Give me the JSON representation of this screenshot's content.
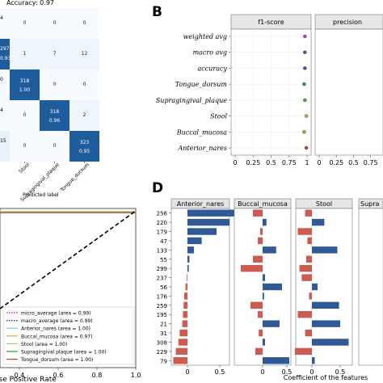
{
  "panel_labels": {
    "b": "B",
    "d": "D"
  },
  "panel_a": {
    "title": "Accuracy: 0.97",
    "xlabel": "Predicted label",
    "col_labels": [
      "Stool",
      "Supragingival_plaque",
      "Tongue_dorsum"
    ],
    "cells": [
      [
        [
          "0",
          ""
        ],
        [
          "0",
          ""
        ],
        [
          "0",
          ""
        ]
      ],
      [
        [
          "1",
          ""
        ],
        [
          "7",
          ""
        ],
        [
          "12",
          ""
        ]
      ],
      [
        [
          "318",
          "1.00"
        ],
        [
          "0",
          ""
        ],
        [
          "0",
          ""
        ]
      ],
      [
        [
          "0",
          ""
        ],
        [
          "318",
          "0.96"
        ],
        [
          "2",
          ""
        ]
      ],
      [
        [
          "0",
          ""
        ],
        [
          "0",
          ""
        ],
        [
          "323",
          "0.95"
        ]
      ]
    ],
    "left_partial": [
      "297",
      "0.93",
      "0",
      "4",
      "15"
    ],
    "partial_top_left": "4"
  },
  "chart_data": [
    {
      "type": "scatter",
      "panel": "B",
      "facet_titles": [
        "f1-score",
        "precision"
      ],
      "categories": [
        "weighted avg",
        "macro avg",
        "accuracy",
        "Tongue_dorsum",
        "Supragingival_plaque",
        "Stool",
        "Buccal_mucosa",
        "Anterior_nares"
      ],
      "values": [
        0.97,
        0.97,
        0.97,
        0.96,
        0.97,
        0.99,
        0.96,
        0.99
      ],
      "colors": [
        "#c042b8",
        "#7a3ea8",
        "#2e5ea8",
        "#2b8c8c",
        "#5aa94a",
        "#b7b23a",
        "#7fb93a",
        "#c94a3a"
      ],
      "xlim": [
        0,
        1
      ],
      "x_ticks": [
        "0",
        "0.25",
        "0.5",
        "0.75",
        "1"
      ],
      "x_ticks_right": [
        "0",
        "0.25",
        "0.5",
        "0.75"
      ]
    },
    {
      "type": "line",
      "panel": "C",
      "xlabel": "False Positive Rate",
      "x_ticks": [
        "0.4",
        "0.6",
        "0.8",
        "1.0"
      ],
      "series": [
        {
          "name": "micro_average (area = 0.99)",
          "color": "#e0407a",
          "style": "dotted"
        },
        {
          "name": "macro_average (area = 0.99)",
          "color": "#3a3aa0",
          "style": "dotted"
        },
        {
          "name": "Anterior_nares (area = 1.00)",
          "color": "#9bbbe0",
          "style": "solid"
        },
        {
          "name": "Buccal_mucosa (area = 0.97)",
          "color": "#f0a040",
          "style": "solid"
        },
        {
          "name": "Stool (area = 1.00)",
          "color": "#9ad07a",
          "style": "solid"
        },
        {
          "name": "Supragingival plaque (area = 1.00)",
          "color": "#2e9a2e",
          "style": "solid"
        },
        {
          "name": "Tongue_dorsum (area = 1.00)",
          "color": "#d43a3a",
          "style": "solid"
        }
      ]
    },
    {
      "type": "bar",
      "panel": "D",
      "xlabel": "Coefficient of the features",
      "categories": [
        "256",
        "220",
        "179",
        "47",
        "133",
        "55",
        "299",
        "237",
        "56",
        "176",
        "259",
        "195",
        "21",
        "31",
        "308",
        "229",
        "79"
      ],
      "facets": [
        {
          "name": "Anterior_nares",
          "x_ticks": [
            "0",
            "0.5"
          ],
          "values": [
            0.75,
            0.65,
            0.45,
            0.22,
            0.1,
            0.03,
            0.02,
            -0.01,
            -0.03,
            -0.05,
            -0.06,
            -0.07,
            -0.08,
            -0.12,
            -0.14,
            -0.18,
            -0.22
          ]
        },
        {
          "name": "Buccal_mucosa",
          "x_ticks": [
            "0",
            "0.5"
          ],
          "values": [
            -0.2,
            0.08,
            -0.05,
            -0.1,
            0.28,
            -0.2,
            -0.45,
            0.05,
            0.4,
            0.03,
            -0.25,
            -0.1,
            0.35,
            -0.08,
            0.05,
            -0.15,
            0.55
          ]
        },
        {
          "name": "Stool",
          "x_ticks": [
            "0",
            "0.5"
          ],
          "values": [
            -0.12,
            0.22,
            -0.25,
            -0.08,
            0.45,
            -0.1,
            -0.22,
            -0.18,
            0.1,
            -0.05,
            0.48,
            -0.25,
            0.5,
            -0.12,
            0.65,
            -0.3,
            0.05
          ]
        },
        {
          "name": "Supra",
          "x_ticks": [],
          "values": [
            0,
            0,
            0,
            0,
            0,
            0,
            0,
            0,
            0,
            0,
            0,
            0,
            0,
            0,
            0,
            0,
            0
          ]
        }
      ]
    }
  ]
}
